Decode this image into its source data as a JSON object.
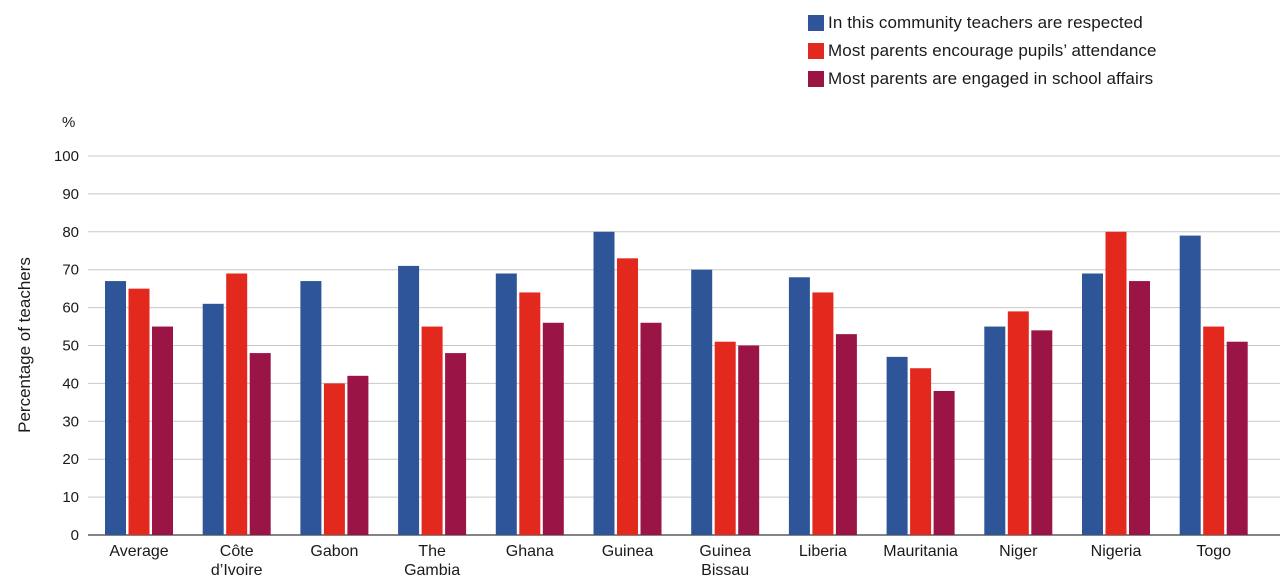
{
  "chart_data": {
    "type": "bar",
    "ylabel": "Percentage of teachers",
    "y_unit_label": "%",
    "ylim": [
      0,
      100
    ],
    "yticks": [
      0,
      10,
      20,
      30,
      40,
      50,
      60,
      70,
      80,
      90,
      100
    ],
    "grid": true,
    "legend_position": "top-right",
    "categories": [
      [
        "Average"
      ],
      [
        "Côte",
        "d’Ivoire"
      ],
      [
        "Gabon"
      ],
      [
        "The",
        "Gambia"
      ],
      [
        "Ghana"
      ],
      [
        "Guinea"
      ],
      [
        "Guinea",
        "Bissau"
      ],
      [
        "Liberia"
      ],
      [
        "Mauritania"
      ],
      [
        "Niger"
      ],
      [
        "Nigeria"
      ],
      [
        "Togo"
      ]
    ],
    "series": [
      {
        "name": "In this community teachers are respected",
        "color": "#2d5597",
        "values": [
          67,
          61,
          67,
          71,
          69,
          80,
          70,
          68,
          47,
          55,
          69,
          79
        ]
      },
      {
        "name": "Most parents encourage pupils’ attendance",
        "color": "#e3281e",
        "values": [
          65,
          69,
          40,
          55,
          64,
          73,
          51,
          64,
          44,
          59,
          80,
          55
        ]
      },
      {
        "name": "Most parents are engaged in school affairs",
        "color": "#9a1546",
        "values": [
          55,
          48,
          42,
          48,
          56,
          56,
          50,
          53,
          38,
          54,
          67,
          51
        ]
      }
    ]
  }
}
